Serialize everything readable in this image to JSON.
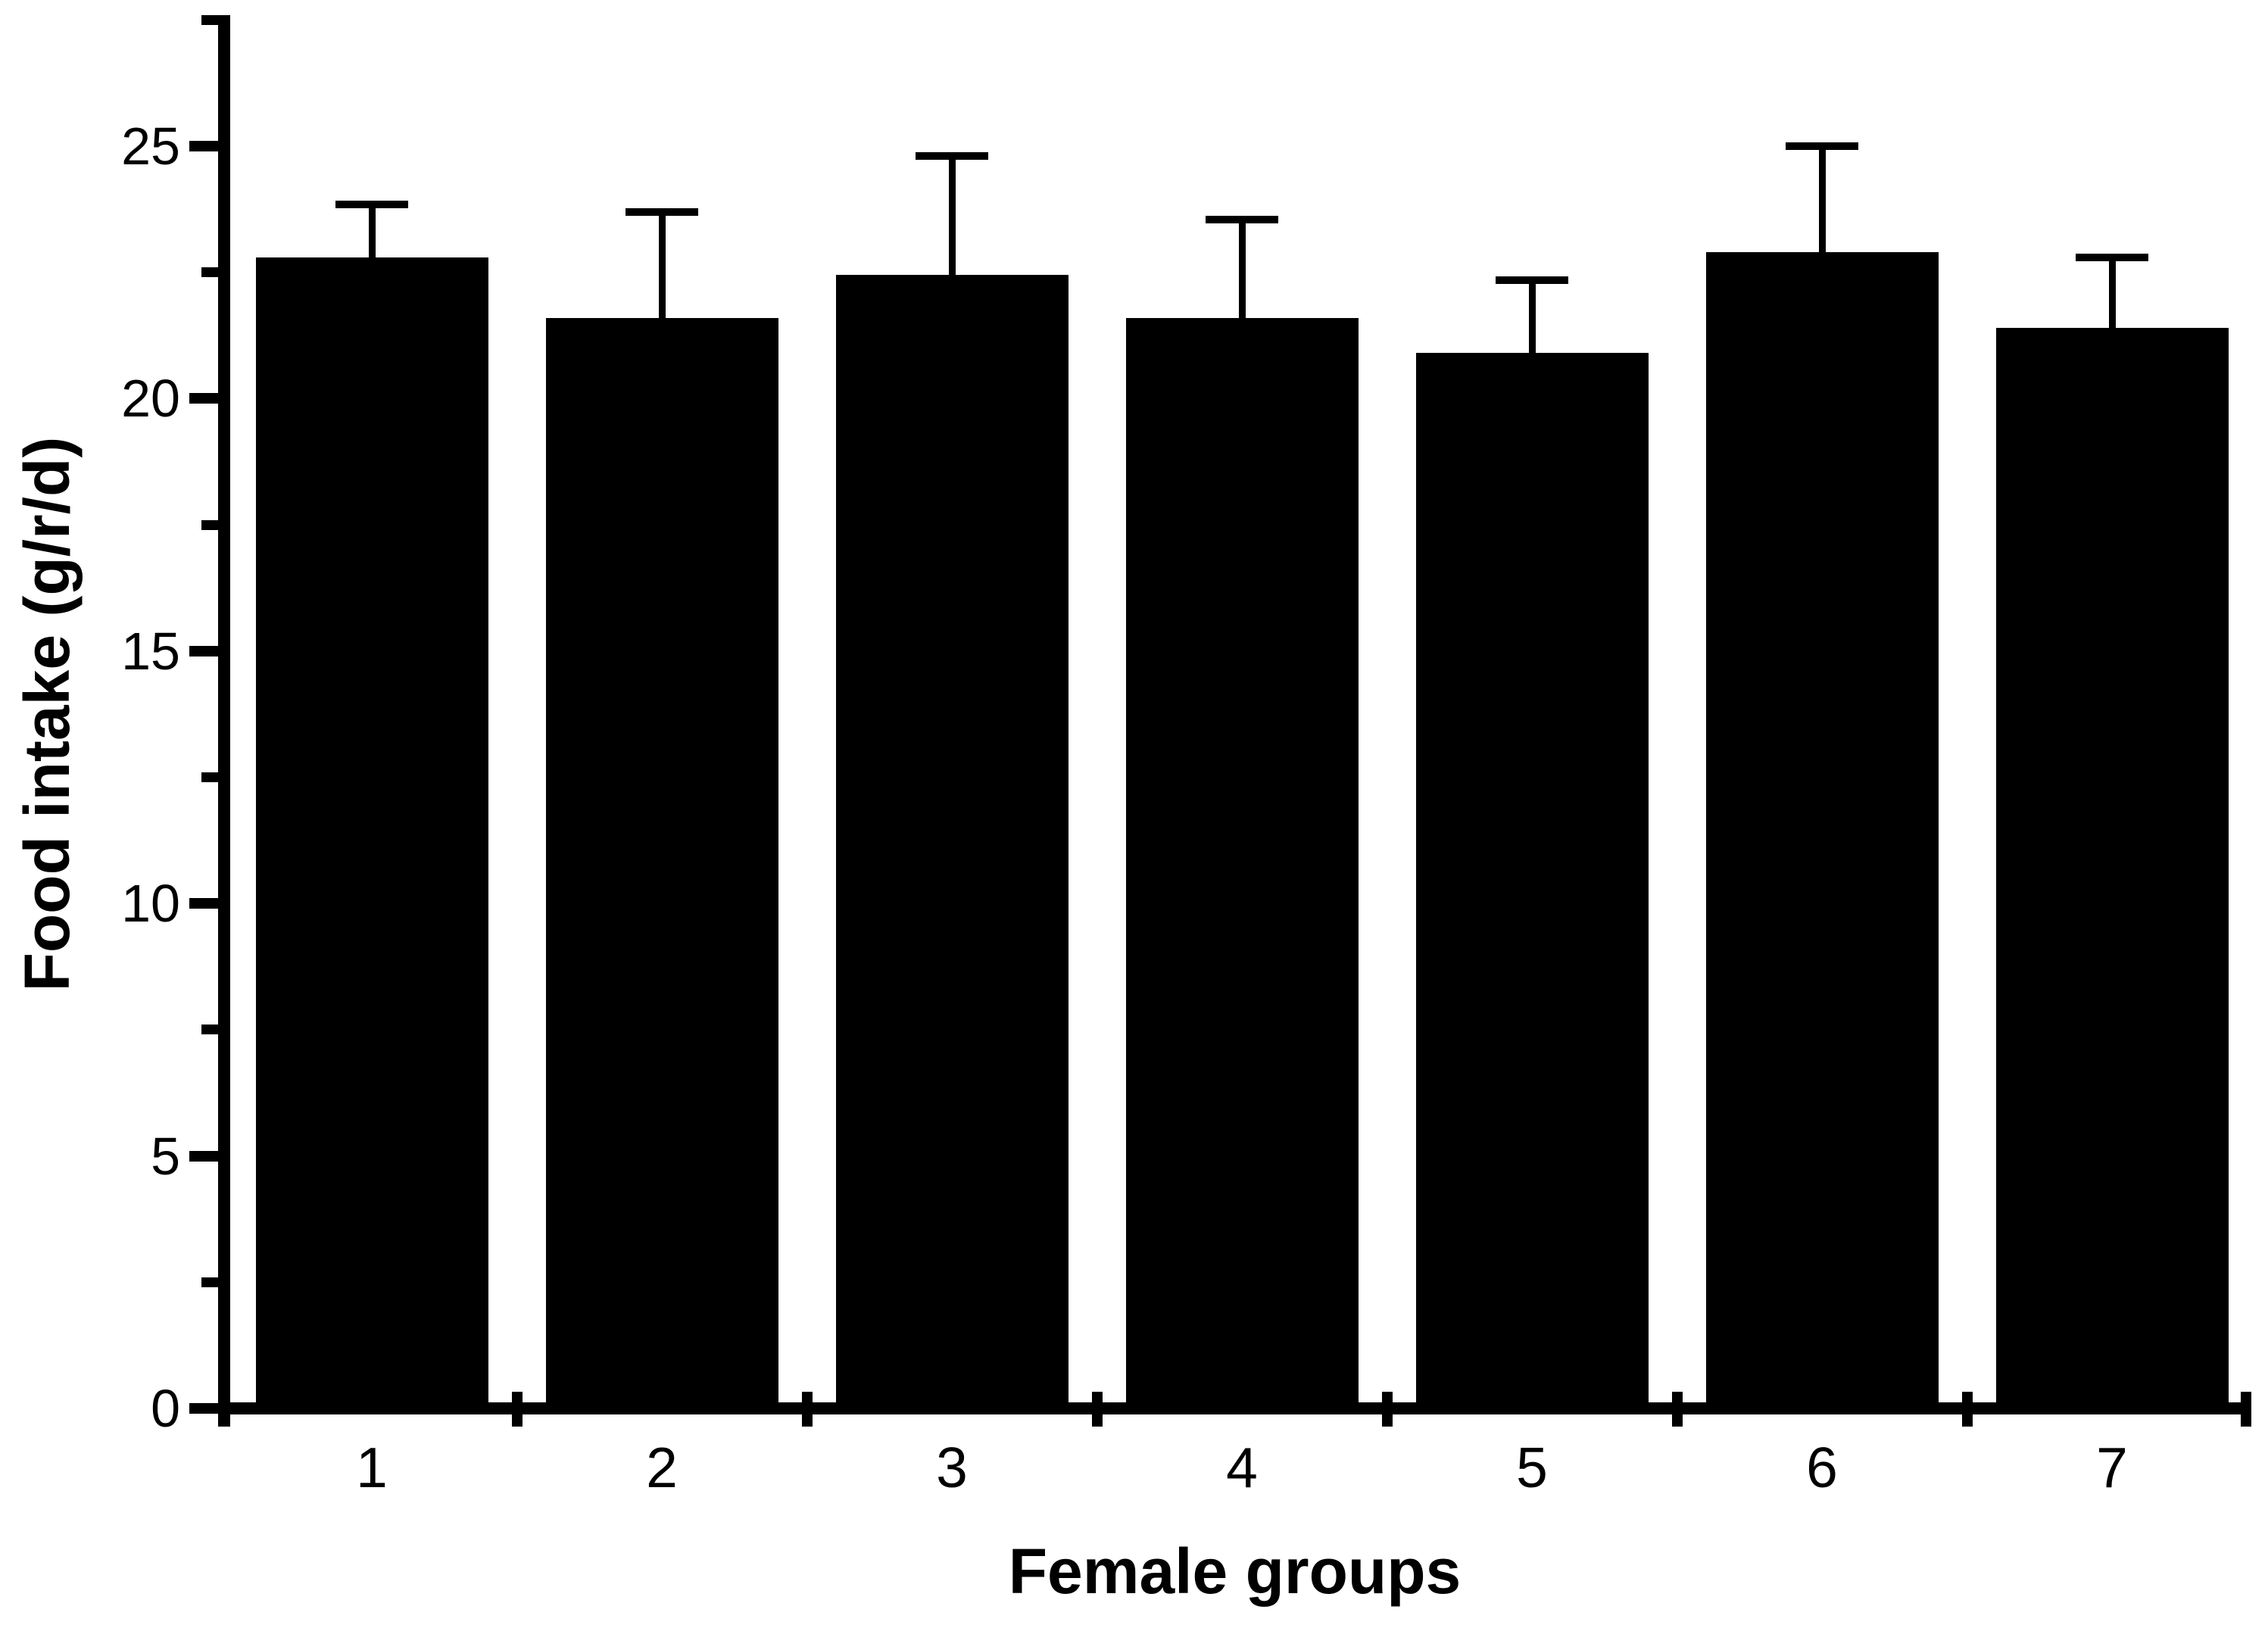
{
  "figure": {
    "background_color": "#ffffff",
    "ink_color": "#000000"
  },
  "chart_data": {
    "type": "bar",
    "title": "",
    "xlabel": "Female groups",
    "ylabel": "Food intake (g/r/d)",
    "categories": [
      "1",
      "2",
      "3",
      "4",
      "5",
      "6",
      "7"
    ],
    "values": [
      22.8,
      21.6,
      22.45,
      21.6,
      20.9,
      22.9,
      21.4
    ],
    "error_bar_tops": [
      23.85,
      23.7,
      24.8,
      23.55,
      22.35,
      25.0,
      22.8
    ],
    "error_plus_sd": [
      1.05,
      2.1,
      2.35,
      1.95,
      1.45,
      2.1,
      1.4
    ],
    "error_direction": "upper-only",
    "bar_color": "#000000",
    "ylim": [
      0,
      27.5
    ],
    "yticks_major": [
      0,
      5,
      10,
      15,
      20,
      25
    ],
    "ytick_minor_step": 2.5,
    "grid": false,
    "legend_position": "none"
  }
}
